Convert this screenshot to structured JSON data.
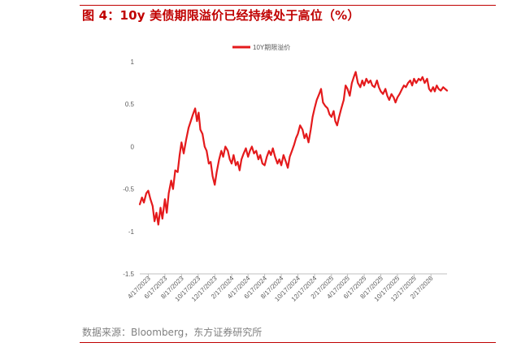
{
  "header": {
    "title": "图 4：10y 美债期限溢价已经持续处于高位（%）"
  },
  "footer": {
    "source": "数据来源：Bloomberg，东方证券研究所"
  },
  "colors": {
    "accent": "#c00000",
    "series": "#e41a1c",
    "axis": "#bfbfbf",
    "tick_text": "#595959"
  },
  "chart_data": {
    "type": "line",
    "title": "",
    "xlabel": "",
    "ylabel": "",
    "legend": {
      "position": "top-center",
      "entries": [
        "10Y期限溢价"
      ]
    },
    "grid": false,
    "ylim": [
      -1.5,
      1
    ],
    "y_ticks": [
      "1",
      "0.5",
      "0",
      "-0.5",
      "-1",
      "-1.5"
    ],
    "x_tick_labels": [
      "4/17/2023",
      "6/17/2023",
      "8/17/2023",
      "10/17/2023",
      "12/17/2023",
      "2/17/2024",
      "4/17/2024",
      "6/17/2024",
      "8/17/2024",
      "10/17/2024",
      "12/17/2024",
      "2/17/2025",
      "4/17/2025",
      "6/17/2025",
      "8/17/2025",
      "10/17/2025",
      "12/17/2025",
      "2/17/2026"
    ],
    "x_range": [
      "2023-03-17",
      "2026-04-17"
    ],
    "series": [
      {
        "name": "10Y期限溢价",
        "points": [
          [
            "2023-03-17",
            -0.68
          ],
          [
            "2023-03-25",
            -0.6
          ],
          [
            "2023-04-01",
            -0.66
          ],
          [
            "2023-04-10",
            -0.55
          ],
          [
            "2023-04-17",
            -0.52
          ],
          [
            "2023-04-25",
            -0.62
          ],
          [
            "2023-05-03",
            -0.7
          ],
          [
            "2023-05-10",
            -0.88
          ],
          [
            "2023-05-17",
            -0.78
          ],
          [
            "2023-05-24",
            -0.92
          ],
          [
            "2023-06-01",
            -0.72
          ],
          [
            "2023-06-08",
            -0.85
          ],
          [
            "2023-06-17",
            -0.62
          ],
          [
            "2023-06-24",
            -0.78
          ],
          [
            "2023-07-01",
            -0.55
          ],
          [
            "2023-07-10",
            -0.4
          ],
          [
            "2023-07-17",
            -0.5
          ],
          [
            "2023-07-25",
            -0.28
          ],
          [
            "2023-08-03",
            -0.3
          ],
          [
            "2023-08-10",
            -0.1
          ],
          [
            "2023-08-17",
            0.05
          ],
          [
            "2023-08-25",
            -0.08
          ],
          [
            "2023-09-03",
            0.08
          ],
          [
            "2023-09-12",
            0.22
          ],
          [
            "2023-09-20",
            0.3
          ],
          [
            "2023-09-28",
            0.38
          ],
          [
            "2023-10-06",
            0.45
          ],
          [
            "2023-10-13",
            0.3
          ],
          [
            "2023-10-19",
            0.4
          ],
          [
            "2023-10-25",
            0.2
          ],
          [
            "2023-11-02",
            0.15
          ],
          [
            "2023-11-10",
            0.0
          ],
          [
            "2023-11-17",
            -0.05
          ],
          [
            "2023-11-25",
            -0.2
          ],
          [
            "2023-12-02",
            -0.18
          ],
          [
            "2023-12-09",
            -0.35
          ],
          [
            "2023-12-17",
            -0.45
          ],
          [
            "2023-12-24",
            -0.3
          ],
          [
            "2024-01-02",
            -0.15
          ],
          [
            "2024-01-10",
            -0.05
          ],
          [
            "2024-01-17",
            -0.12
          ],
          [
            "2024-01-25",
            0.0
          ],
          [
            "2024-02-03",
            -0.05
          ],
          [
            "2024-02-10",
            -0.15
          ],
          [
            "2024-02-17",
            -0.2
          ],
          [
            "2024-02-24",
            -0.1
          ],
          [
            "2024-03-03",
            -0.22
          ],
          [
            "2024-03-10",
            -0.18
          ],
          [
            "2024-03-17",
            -0.28
          ],
          [
            "2024-03-24",
            -0.15
          ],
          [
            "2024-04-01",
            -0.08
          ],
          [
            "2024-04-09",
            -0.02
          ],
          [
            "2024-04-17",
            -0.12
          ],
          [
            "2024-04-24",
            -0.05
          ],
          [
            "2024-05-01",
            0.0
          ],
          [
            "2024-05-09",
            -0.08
          ],
          [
            "2024-05-17",
            -0.05
          ],
          [
            "2024-05-25",
            -0.15
          ],
          [
            "2024-06-01",
            -0.1
          ],
          [
            "2024-06-09",
            -0.2
          ],
          [
            "2024-06-17",
            -0.22
          ],
          [
            "2024-06-25",
            -0.12
          ],
          [
            "2024-07-03",
            -0.05
          ],
          [
            "2024-07-10",
            -0.1
          ],
          [
            "2024-07-17",
            -0.02
          ],
          [
            "2024-07-25",
            -0.12
          ],
          [
            "2024-08-03",
            -0.2
          ],
          [
            "2024-08-10",
            -0.15
          ],
          [
            "2024-08-17",
            -0.22
          ],
          [
            "2024-08-25",
            -0.1
          ],
          [
            "2024-09-03",
            -0.18
          ],
          [
            "2024-09-10",
            -0.25
          ],
          [
            "2024-09-17",
            -0.12
          ],
          [
            "2024-09-25",
            -0.05
          ],
          [
            "2024-10-03",
            0.02
          ],
          [
            "2024-10-10",
            0.1
          ],
          [
            "2024-10-17",
            0.15
          ],
          [
            "2024-10-25",
            0.25
          ],
          [
            "2024-11-03",
            0.2
          ],
          [
            "2024-11-10",
            0.1
          ],
          [
            "2024-11-17",
            0.15
          ],
          [
            "2024-11-25",
            0.05
          ],
          [
            "2024-12-03",
            0.2
          ],
          [
            "2024-12-10",
            0.35
          ],
          [
            "2024-12-17",
            0.45
          ],
          [
            "2024-12-25",
            0.55
          ],
          [
            "2025-01-03",
            0.62
          ],
          [
            "2025-01-10",
            0.68
          ],
          [
            "2025-01-17",
            0.52
          ],
          [
            "2025-01-25",
            0.48
          ],
          [
            "2025-02-03",
            0.45
          ],
          [
            "2025-02-10",
            0.38
          ],
          [
            "2025-02-17",
            0.35
          ],
          [
            "2025-02-25",
            0.42
          ],
          [
            "2025-03-03",
            0.3
          ],
          [
            "2025-03-10",
            0.25
          ],
          [
            "2025-03-17",
            0.35
          ],
          [
            "2025-03-25",
            0.45
          ],
          [
            "2025-04-03",
            0.55
          ],
          [
            "2025-04-10",
            0.72
          ],
          [
            "2025-04-17",
            0.68
          ],
          [
            "2025-04-25",
            0.6
          ],
          [
            "2025-05-03",
            0.75
          ],
          [
            "2025-05-10",
            0.82
          ],
          [
            "2025-05-17",
            0.88
          ],
          [
            "2025-05-25",
            0.75
          ],
          [
            "2025-06-03",
            0.7
          ],
          [
            "2025-06-10",
            0.78
          ],
          [
            "2025-06-17",
            0.72
          ],
          [
            "2025-06-25",
            0.8
          ],
          [
            "2025-07-03",
            0.75
          ],
          [
            "2025-07-10",
            0.78
          ],
          [
            "2025-07-17",
            0.72
          ],
          [
            "2025-07-25",
            0.7
          ],
          [
            "2025-08-03",
            0.78
          ],
          [
            "2025-08-10",
            0.7
          ],
          [
            "2025-08-17",
            0.65
          ],
          [
            "2025-08-25",
            0.62
          ],
          [
            "2025-09-03",
            0.68
          ],
          [
            "2025-09-10",
            0.6
          ],
          [
            "2025-09-17",
            0.55
          ],
          [
            "2025-09-25",
            0.62
          ],
          [
            "2025-10-03",
            0.58
          ],
          [
            "2025-10-10",
            0.52
          ],
          [
            "2025-10-17",
            0.58
          ],
          [
            "2025-10-25",
            0.62
          ],
          [
            "2025-11-03",
            0.68
          ],
          [
            "2025-11-10",
            0.72
          ],
          [
            "2025-11-17",
            0.7
          ],
          [
            "2025-11-25",
            0.75
          ],
          [
            "2025-12-03",
            0.78
          ],
          [
            "2025-12-10",
            0.72
          ],
          [
            "2025-12-17",
            0.8
          ],
          [
            "2025-12-25",
            0.75
          ],
          [
            "2026-01-03",
            0.8
          ],
          [
            "2026-01-10",
            0.78
          ],
          [
            "2026-01-17",
            0.82
          ],
          [
            "2026-01-25",
            0.75
          ],
          [
            "2026-02-03",
            0.8
          ],
          [
            "2026-02-10",
            0.68
          ],
          [
            "2026-02-17",
            0.65
          ],
          [
            "2026-02-25",
            0.7
          ],
          [
            "2026-03-03",
            0.65
          ],
          [
            "2026-03-10",
            0.72
          ],
          [
            "2026-03-17",
            0.68
          ],
          [
            "2026-03-25",
            0.66
          ],
          [
            "2026-04-03",
            0.7
          ],
          [
            "2026-04-17",
            0.66
          ]
        ]
      }
    ]
  }
}
